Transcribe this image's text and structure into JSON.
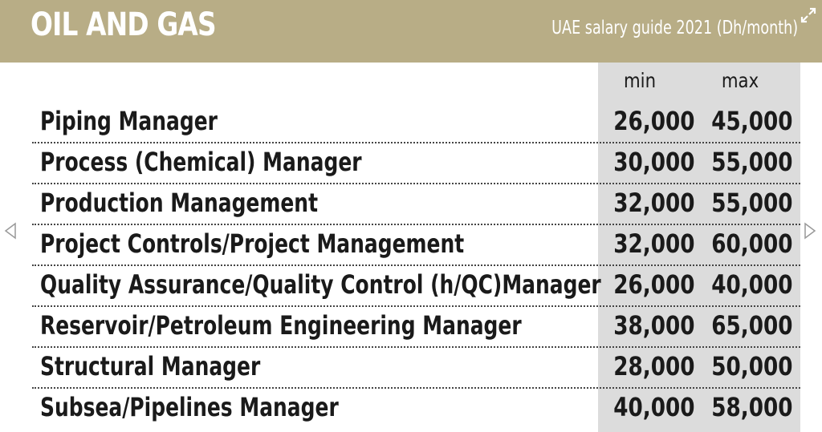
{
  "header": {
    "title": "OIL AND GAS",
    "subtitle": "UAE salary guide 2021 (Dh/month)",
    "background": "#b8ad86"
  },
  "columns": {
    "min": "min",
    "max": "max"
  },
  "rows": [
    {
      "role": "Piping Manager",
      "min": "26,000",
      "max": "45,000"
    },
    {
      "role": "Process (Chemical) Manager",
      "min": "30,000",
      "max": "55,000"
    },
    {
      "role": "Production Management",
      "min": "32,000",
      "max": "55,000"
    },
    {
      "role": "Project Controls/Project Management",
      "min": "32,000",
      "max": "60,000"
    },
    {
      "role": "Quality Assurance/Quality Control (h/QC)Manager",
      "min": "26,000",
      "max": "40,000"
    },
    {
      "role": "Reservoir/Petroleum Engineering Manager",
      "min": "38,000",
      "max": "65,000"
    },
    {
      "role": "Structural Manager",
      "min": "28,000",
      "max": "50,000"
    },
    {
      "role": "Subsea/Pipelines Manager",
      "min": "40,000",
      "max": "58,000"
    }
  ],
  "icons": {
    "expand": "expand-icon",
    "prev": "chevron-left-icon",
    "next": "chevron-right-icon"
  }
}
